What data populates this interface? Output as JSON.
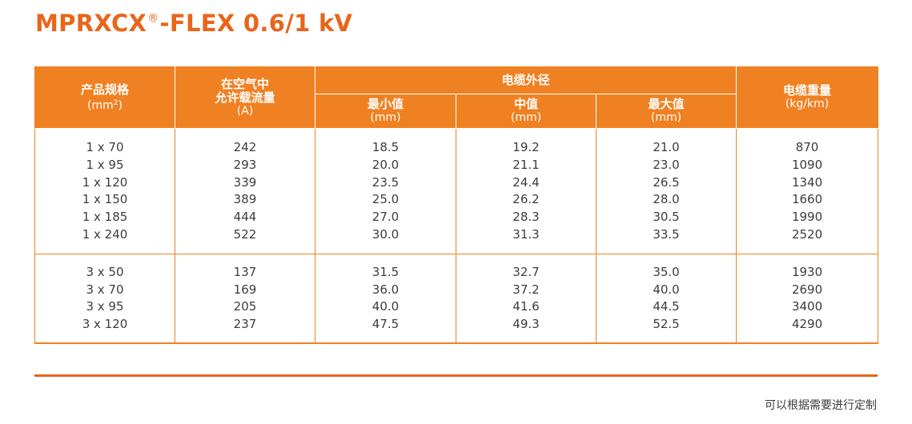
{
  "title": {
    "main": "MPRXCX",
    "mark": "®",
    "suffix": "-FLEX 0.6/1 kV"
  },
  "table": {
    "headers": {
      "spec": {
        "label": "产品规格",
        "unit_base": "(mm",
        "unit_sup": "2",
        "unit_end": ")"
      },
      "current": {
        "line1": "在空气中",
        "line2": "允许载流量",
        "unit": "(A)"
      },
      "diameter": {
        "label": "电缆外径",
        "min": {
          "label": "最小值",
          "unit": "(mm)"
        },
        "mid": {
          "label": "中值",
          "unit": "(mm)"
        },
        "max": {
          "label": "最大值",
          "unit": "(mm)"
        }
      },
      "weight": {
        "label": "电缆重量",
        "unit": "(kg/km)"
      }
    },
    "groups": [
      {
        "spec": [
          "1 x 70",
          "1 x 95",
          "1 x 120",
          "1 x 150",
          "1 x 185",
          "1 x 240"
        ],
        "current": [
          "242",
          "293",
          "339",
          "389",
          "444",
          "522"
        ],
        "min": [
          "18.5",
          "20.0",
          "23.5",
          "25.0",
          "27.0",
          "30.0"
        ],
        "mid": [
          "19.2",
          "21.1",
          "24.4",
          "26.2",
          "28.3",
          "31.3"
        ],
        "max": [
          "21.0",
          "23.0",
          "26.5",
          "28.0",
          "30.5",
          "33.5"
        ],
        "weight": [
          "870",
          "1090",
          "1340",
          "1660",
          "1990",
          "2520"
        ]
      },
      {
        "spec": [
          "3 x 50",
          "3 x 70",
          "3 x 95",
          "3 x 120"
        ],
        "current": [
          "137",
          "169",
          "205",
          "237"
        ],
        "min": [
          "31.5",
          "36.0",
          "40.0",
          "47.5"
        ],
        "mid": [
          "32.7",
          "37.2",
          "41.6",
          "49.3"
        ],
        "max": [
          "35.0",
          "40.0",
          "44.5",
          "52.5"
        ],
        "weight": [
          "1930",
          "2690",
          "3400",
          "4290"
        ]
      }
    ]
  },
  "footnote": "可以根据需要进行定制",
  "colors": {
    "accent": "#f08122",
    "title": "#e8651a",
    "text": "#3c3c3c"
  }
}
